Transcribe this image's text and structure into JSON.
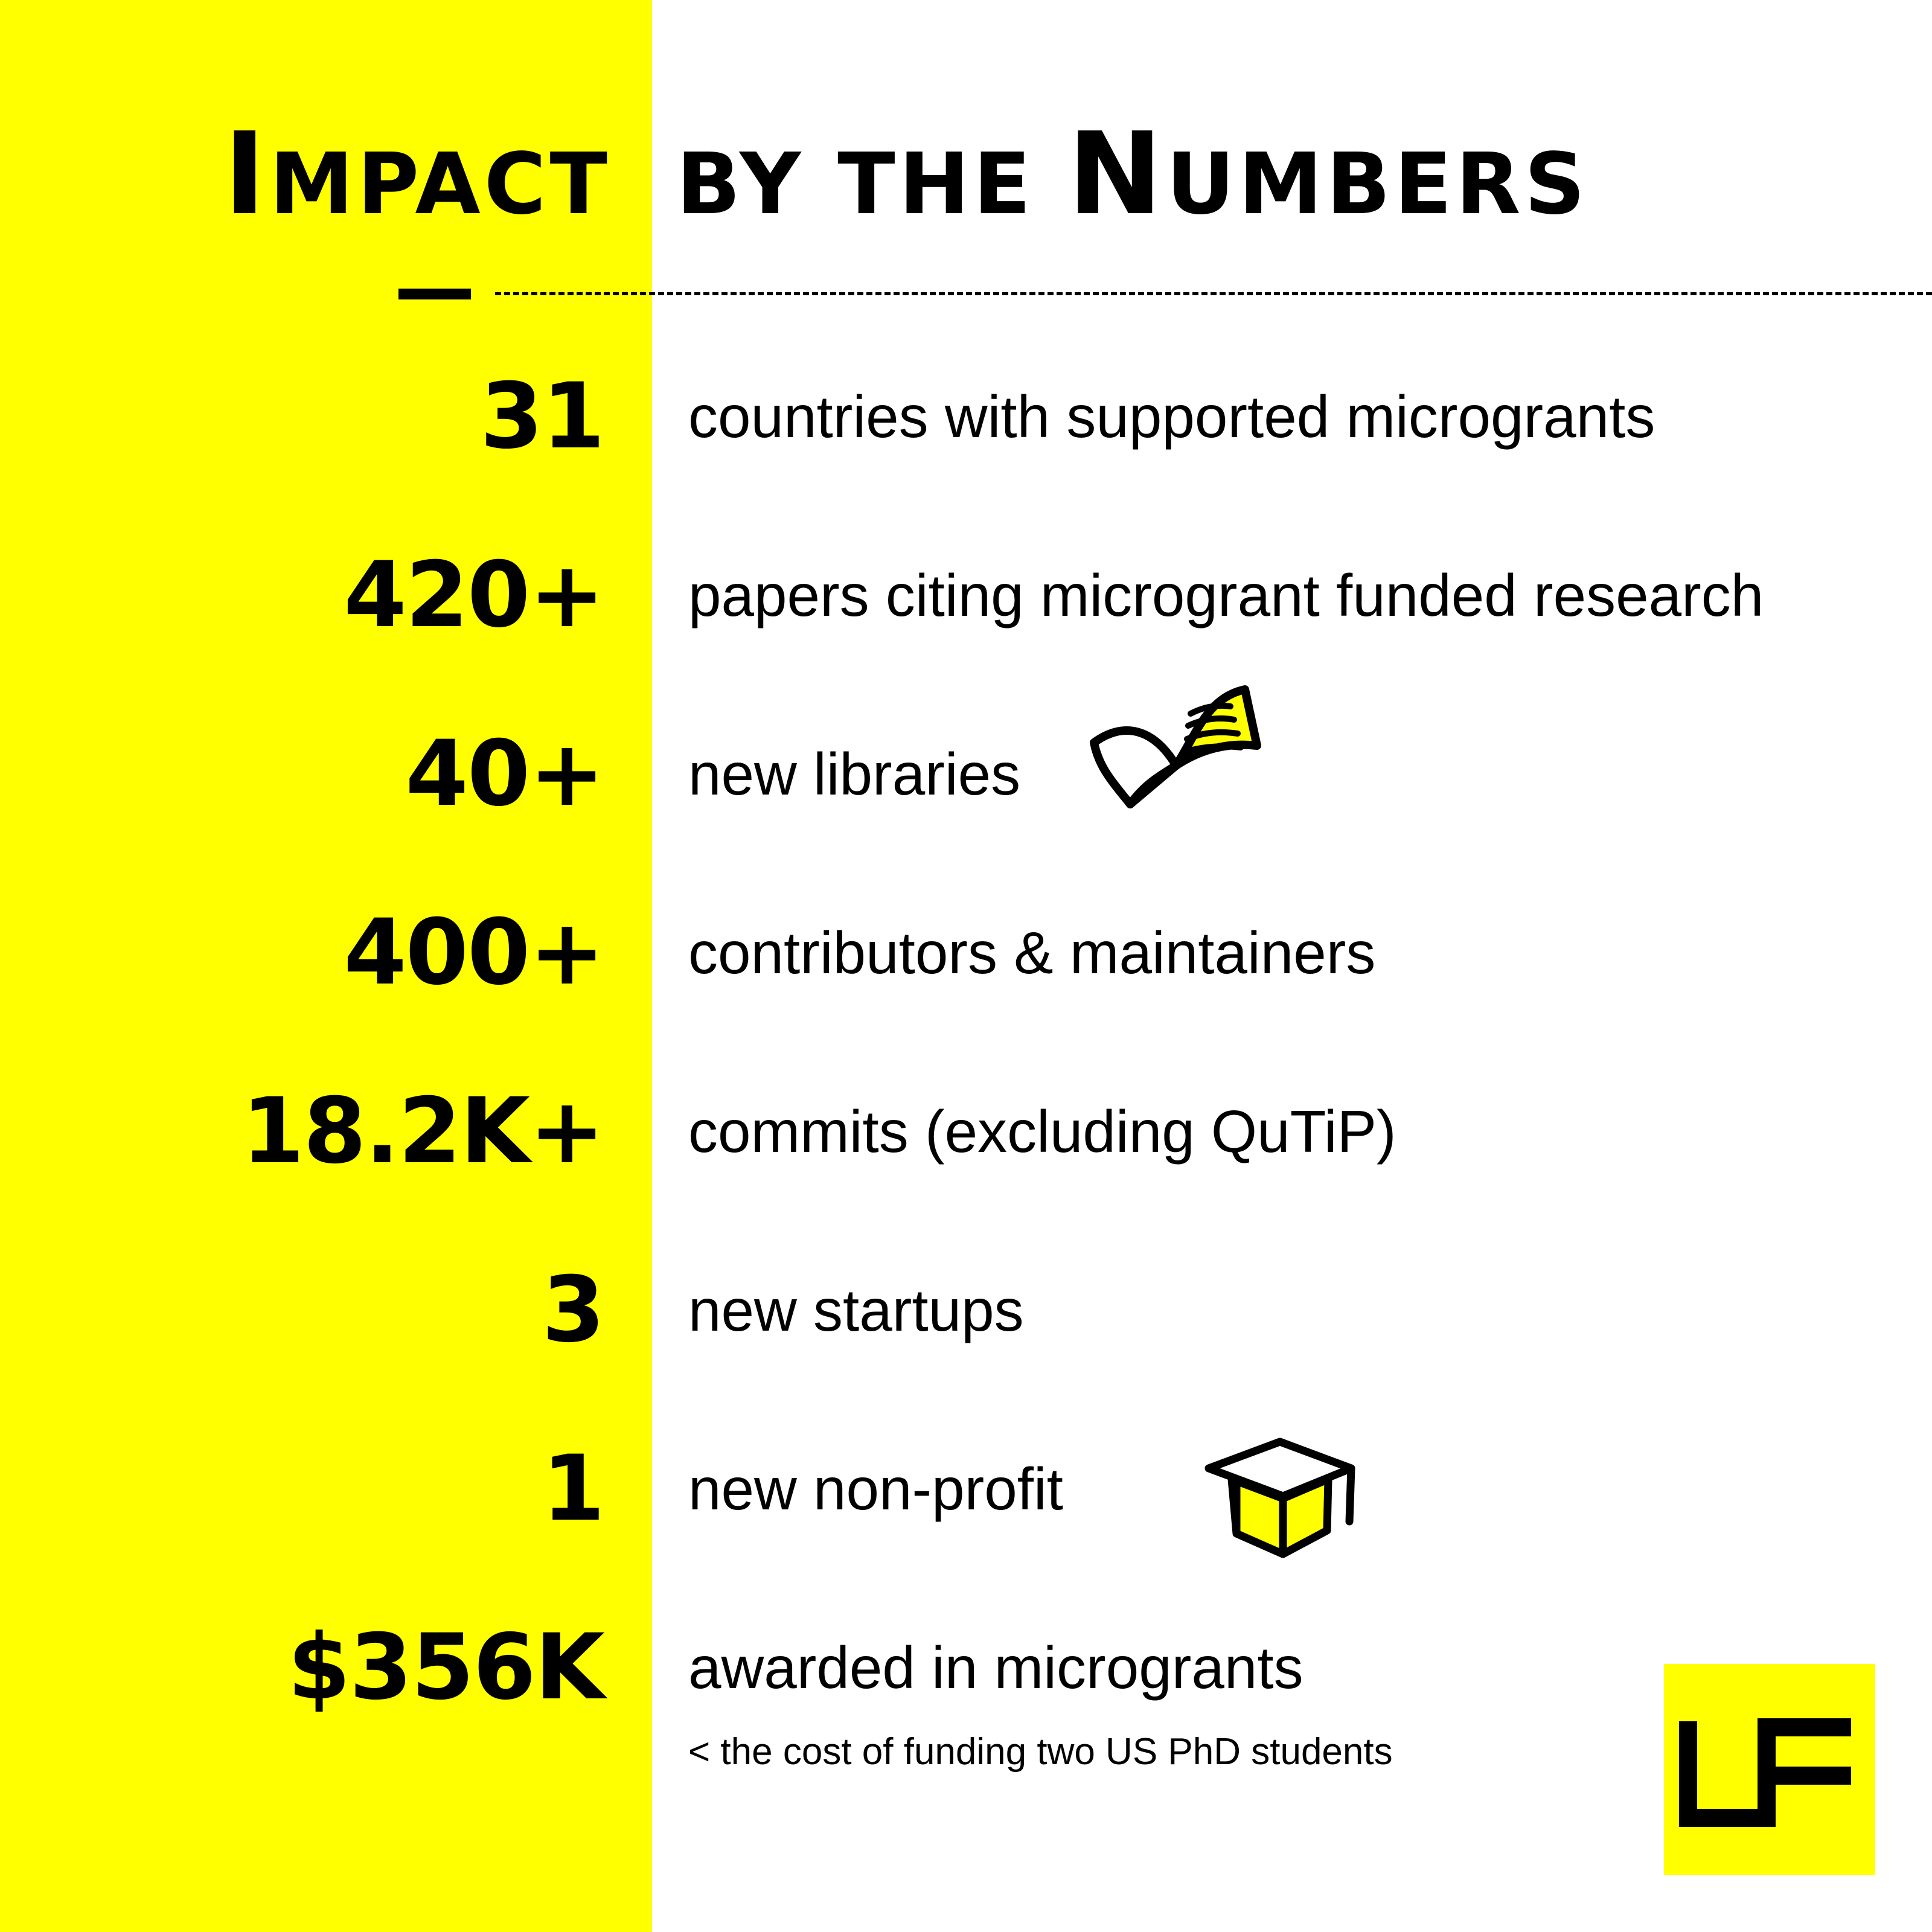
{
  "title": {
    "left_first": "I",
    "left_rest": "MPACT",
    "right_lower": "BY THE ",
    "right_cap": "N",
    "right_rest": "UMBERS"
  },
  "stats": [
    {
      "value": "31",
      "label": "countries with supported microgrants"
    },
    {
      "value": "420+",
      "label": "papers citing microgrant funded research"
    },
    {
      "value": "40+",
      "label": "new libraries"
    },
    {
      "value": "400+",
      "label": "contributors & maintainers"
    },
    {
      "value": "18.2K+",
      "label": "commits (excluding QuTiP)"
    },
    {
      "value": "3",
      "label": "new startups"
    },
    {
      "value": "1",
      "label": "new non-profit"
    },
    {
      "value": "$356K",
      "label": "awarded in microgrants"
    }
  ],
  "footnote": "< the cost of funding two US PhD students",
  "logo_text": "LF",
  "icons": [
    "open-book-icon",
    "graduation-cap-icon"
  ],
  "colors": {
    "accent": "#ffff00",
    "text": "#000000",
    "background": "#ffffff"
  }
}
